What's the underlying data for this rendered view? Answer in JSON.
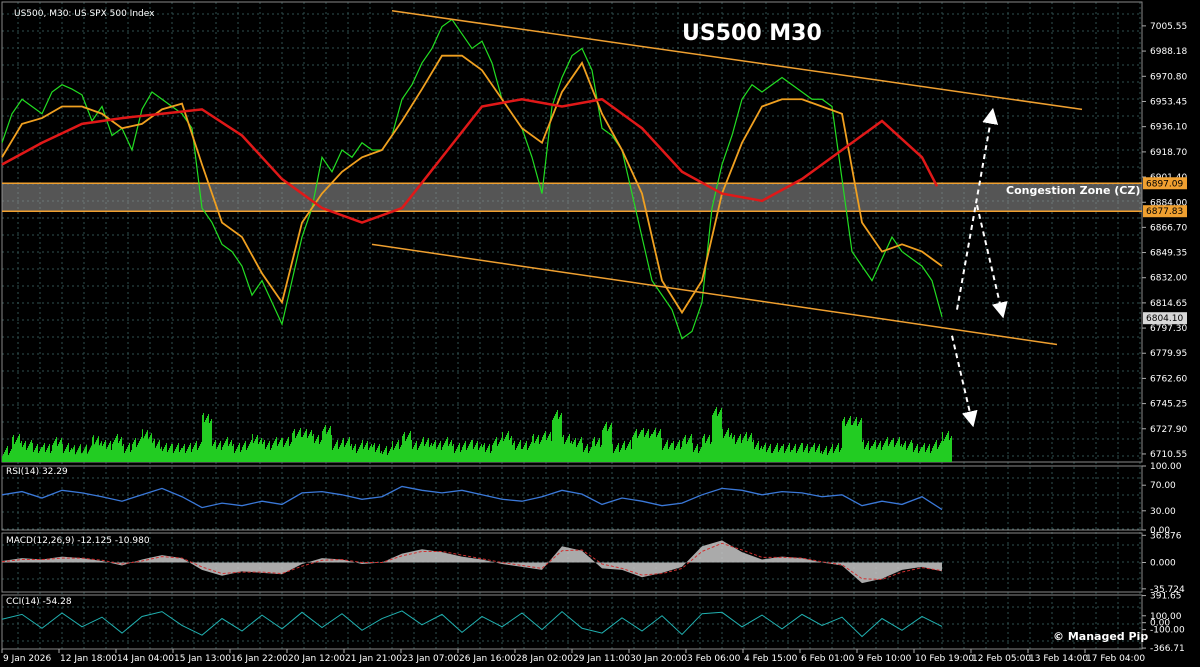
{
  "header": {
    "symbol_line": "US500, M30:  US SPX 500 Index",
    "rsi_label": "RSI(14) 32.29",
    "macd_label": "MACD(12,26,9) -12.125 -10.980",
    "cci_label": "CCI(14) -54.28"
  },
  "annotations": {
    "title": "US500 M30",
    "zone_label": "Congestion Zone (CZ)",
    "copyright": "© Managed Pip"
  },
  "colors": {
    "background": "#000000",
    "grid": "#2f4f4f",
    "price": "#22dd22",
    "ma_fast": "#f0a020",
    "ma_slow": "#e01818",
    "trendline": "#f0a030",
    "zone_fill": "#9a9a9a",
    "zone_border": "#f0a030",
    "rsi": "#3a78d8",
    "macd_hist": "#c8c8c8",
    "macd_signal": "#d03030",
    "cci": "#20b0b0",
    "volume": "#22cc22"
  },
  "chart_data": [
    {
      "type": "line",
      "title": "US500 M30",
      "y_ticks": [
        "7005.55",
        "6988.18",
        "6970.80",
        "6953.45",
        "6936.10",
        "6918.70",
        "6901.40",
        "6884.00",
        "6866.70",
        "6849.35",
        "6832.00",
        "6814.65",
        "6797.30",
        "6779.95",
        "6762.60",
        "6745.25",
        "6727.90",
        "6710.55"
      ],
      "ylim": [
        6705,
        7022
      ],
      "x_tick_labels": [
        "9 Jan 2026",
        "12 Jan 18:00",
        "14 Jan 04:00",
        "15 Jan 13:00",
        "16 Jan 22:00",
        "20 Jan 12:00",
        "21 Jan 21:00",
        "23 Jan 07:00",
        "26 Jan 16:00",
        "28 Jan 02:00",
        "29 Jan 11:00",
        "30 Jan 20:00",
        "3 Feb 06:00",
        "4 Feb 15:00",
        "6 Feb 01:00",
        "9 Feb 10:00",
        "10 Feb 19:00",
        "12 Feb 05:00",
        "13 Feb 14:00",
        "17 Feb 04:00"
      ],
      "price_boxes": [
        {
          "label": "6897.09",
          "value": 6897.09
        },
        {
          "label": "6877.83",
          "value": 6877.83
        },
        {
          "label": "6804.10",
          "value": 6804.1
        }
      ],
      "congestion_zone": [
        6877.83,
        6897.09
      ],
      "series": [
        {
          "name": "price",
          "x": [
            0,
            10,
            20,
            30,
            40,
            50,
            60,
            70,
            80,
            90,
            100,
            110,
            120,
            130,
            140,
            150,
            160,
            170,
            180,
            190,
            200,
            210,
            220,
            230,
            240,
            250,
            260,
            270,
            280,
            290,
            300,
            310,
            320,
            330,
            340,
            350,
            360,
            370,
            380,
            390,
            400,
            410,
            420,
            430,
            440,
            450,
            460,
            470,
            480,
            490,
            500,
            510,
            520,
            530,
            540,
            550,
            560,
            570,
            580,
            590,
            600,
            610,
            620,
            630,
            640,
            650,
            660,
            670,
            680,
            690,
            700,
            710,
            720,
            730,
            740,
            750,
            760,
            770,
            780,
            790,
            800,
            810,
            820,
            830,
            840,
            850,
            860,
            870,
            880,
            890,
            900,
            910,
            920,
            930,
            940
          ],
          "values": [
            6925,
            6945,
            6955,
            6950,
            6945,
            6960,
            6965,
            6962,
            6958,
            6940,
            6950,
            6930,
            6935,
            6920,
            6948,
            6960,
            6955,
            6950,
            6945,
            6935,
            6880,
            6870,
            6855,
            6850,
            6840,
            6820,
            6830,
            6815,
            6800,
            6830,
            6860,
            6880,
            6915,
            6905,
            6920,
            6915,
            6925,
            6920,
            6920,
            6930,
            6955,
            6965,
            6980,
            6990,
            7005,
            7010,
            7000,
            6990,
            6995,
            6980,
            6955,
            6945,
            6935,
            6915,
            6890,
            6950,
            6970,
            6985,
            6990,
            6975,
            6935,
            6930,
            6920,
            6890,
            6860,
            6830,
            6820,
            6810,
            6790,
            6795,
            6815,
            6880,
            6910,
            6930,
            6955,
            6965,
            6960,
            6965,
            6970,
            6965,
            6960,
            6955,
            6955,
            6950,
            6900,
            6850,
            6840,
            6830,
            6845,
            6860,
            6850,
            6845,
            6840,
            6830,
            6805
          ]
        },
        {
          "name": "fast-ma",
          "x": [
            0,
            20,
            40,
            60,
            80,
            100,
            120,
            140,
            160,
            180,
            200,
            220,
            240,
            260,
            280,
            300,
            320,
            340,
            360,
            380,
            400,
            420,
            440,
            460,
            480,
            500,
            520,
            540,
            560,
            580,
            600,
            620,
            640,
            660,
            680,
            700,
            720,
            740,
            760,
            780,
            800,
            820,
            840,
            860,
            880,
            900,
            920,
            940
          ],
          "values": [
            6915,
            6938,
            6942,
            6950,
            6950,
            6945,
            6935,
            6938,
            6948,
            6952,
            6910,
            6870,
            6860,
            6835,
            6815,
            6870,
            6890,
            6905,
            6915,
            6920,
            6940,
            6962,
            6985,
            6985,
            6975,
            6955,
            6935,
            6925,
            6960,
            6980,
            6945,
            6920,
            6890,
            6830,
            6808,
            6830,
            6890,
            6925,
            6950,
            6955,
            6955,
            6950,
            6945,
            6870,
            6850,
            6855,
            6850,
            6840
          ]
        },
        {
          "name": "slow-ma",
          "x": [
            0,
            40,
            80,
            120,
            160,
            200,
            240,
            280,
            320,
            360,
            400,
            440,
            480,
            520,
            560,
            600,
            640,
            680,
            720,
            760,
            800,
            840,
            880,
            920,
            935
          ],
          "values": [
            6910,
            6925,
            6938,
            6942,
            6945,
            6948,
            6930,
            6900,
            6880,
            6870,
            6880,
            6915,
            6950,
            6955,
            6950,
            6955,
            6935,
            6905,
            6890,
            6885,
            6900,
            6920,
            6940,
            6915,
            6895
          ]
        }
      ],
      "trendlines": [
        {
          "x": [
            390,
            1080
          ],
          "values": [
            7016,
            6948
          ]
        },
        {
          "x": [
            370,
            1055
          ],
          "values": [
            6855,
            6786
          ]
        }
      ],
      "projection_arrows": [
        {
          "x": [
            955,
            990
          ],
          "values": [
            6810,
            6945
          ]
        },
        {
          "x": [
            975,
            1000
          ],
          "values": [
            6882,
            6808
          ]
        },
        {
          "x": [
            950,
            970
          ],
          "values": [
            6792,
            6733
          ]
        }
      ]
    },
    {
      "type": "line",
      "title": "RSI(14) 32.29",
      "y_ticks": [
        "100.00",
        "70.00",
        "30.00",
        "0.00"
      ],
      "ylim": [
        0,
        100
      ],
      "series": [
        {
          "name": "RSI",
          "x": [
            0,
            20,
            40,
            60,
            80,
            100,
            120,
            140,
            160,
            180,
            200,
            220,
            240,
            260,
            280,
            300,
            320,
            340,
            360,
            380,
            400,
            420,
            440,
            460,
            480,
            500,
            520,
            540,
            560,
            580,
            600,
            620,
            640,
            660,
            680,
            700,
            720,
            740,
            760,
            780,
            800,
            820,
            840,
            860,
            880,
            900,
            920,
            940
          ],
          "values": [
            55,
            60,
            50,
            62,
            58,
            52,
            45,
            55,
            65,
            52,
            35,
            42,
            38,
            45,
            40,
            58,
            60,
            55,
            48,
            52,
            68,
            62,
            58,
            62,
            55,
            48,
            45,
            52,
            62,
            56,
            40,
            50,
            45,
            38,
            42,
            55,
            65,
            62,
            55,
            60,
            58,
            52,
            55,
            38,
            45,
            40,
            52,
            32
          ]
        }
      ]
    },
    {
      "type": "area",
      "title": "MACD(12,26,9) -12.125 -10.980",
      "y_ticks": [
        "36.876",
        "0.000",
        "-35.724"
      ],
      "ylim": [
        -40,
        40
      ],
      "series": [
        {
          "name": "MACD",
          "x": [
            0,
            20,
            40,
            60,
            80,
            100,
            120,
            140,
            160,
            180,
            200,
            220,
            240,
            260,
            280,
            300,
            320,
            340,
            360,
            380,
            400,
            420,
            440,
            460,
            480,
            500,
            520,
            540,
            560,
            580,
            600,
            620,
            640,
            660,
            680,
            700,
            720,
            740,
            760,
            780,
            800,
            820,
            840,
            860,
            880,
            900,
            920,
            940
          ],
          "values": [
            2,
            6,
            4,
            8,
            6,
            2,
            -4,
            4,
            10,
            6,
            -10,
            -18,
            -12,
            -14,
            -16,
            -2,
            6,
            4,
            -2,
            0,
            12,
            18,
            14,
            8,
            4,
            -2,
            -6,
            -10,
            22,
            16,
            -8,
            -10,
            -20,
            -14,
            -6,
            22,
            30,
            14,
            4,
            8,
            6,
            0,
            -4,
            -28,
            -22,
            -10,
            -6,
            -12
          ]
        },
        {
          "name": "Signal",
          "x": [
            0,
            20,
            40,
            60,
            80,
            100,
            120,
            140,
            160,
            180,
            200,
            220,
            240,
            260,
            280,
            300,
            320,
            340,
            360,
            380,
            400,
            420,
            440,
            460,
            480,
            500,
            520,
            540,
            560,
            580,
            600,
            620,
            640,
            660,
            680,
            700,
            720,
            740,
            760,
            780,
            800,
            820,
            840,
            860,
            880,
            900,
            920,
            940
          ],
          "values": [
            1,
            4,
            4,
            6,
            6,
            3,
            -2,
            2,
            8,
            6,
            -6,
            -15,
            -13,
            -13,
            -15,
            -5,
            3,
            4,
            0,
            0,
            9,
            15,
            15,
            10,
            5,
            0,
            -4,
            -8,
            16,
            17,
            -2,
            -8,
            -17,
            -15,
            -8,
            15,
            26,
            17,
            7,
            7,
            6,
            1,
            -3,
            -22,
            -23,
            -13,
            -7,
            -11
          ]
        }
      ]
    },
    {
      "type": "line",
      "title": "CCI(14) -54.28",
      "y_ticks": [
        "391.65",
        "100.00",
        "0.00",
        "-100.00",
        "-366.71"
      ],
      "ylim": [
        -380,
        400
      ],
      "series": [
        {
          "name": "CCI",
          "x": [
            0,
            20,
            40,
            60,
            80,
            100,
            120,
            140,
            160,
            180,
            200,
            220,
            240,
            260,
            280,
            300,
            320,
            340,
            360,
            380,
            400,
            420,
            440,
            460,
            480,
            500,
            520,
            540,
            560,
            580,
            600,
            620,
            640,
            660,
            680,
            700,
            720,
            740,
            760,
            780,
            800,
            820,
            840,
            860,
            880,
            900,
            920,
            940
          ],
          "values": [
            50,
            120,
            -80,
            140,
            -60,
            80,
            -150,
            90,
            160,
            -40,
            -180,
            60,
            -120,
            110,
            -90,
            150,
            -70,
            130,
            -110,
            60,
            170,
            -30,
            120,
            -140,
            90,
            -60,
            140,
            -100,
            160,
            -80,
            -150,
            70,
            -120,
            100,
            -170,
            130,
            150,
            -60,
            110,
            -90,
            120,
            -40,
            80,
            -200,
            60,
            -110,
            90,
            -54
          ]
        }
      ]
    }
  ]
}
